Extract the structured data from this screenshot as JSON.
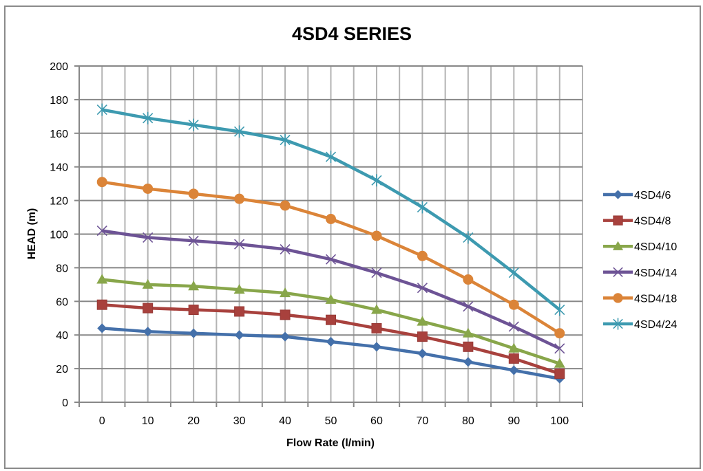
{
  "chart_data": {
    "type": "line",
    "title": "4SD4 SERIES",
    "xlabel": "Flow Rate (l/min)",
    "ylabel": "HEAD (m)",
    "categories": [
      "0",
      "10",
      "20",
      "30",
      "40",
      "50",
      "60",
      "70",
      "80",
      "90",
      "100"
    ],
    "ylim": [
      0,
      200
    ],
    "yticks": [
      "0",
      "20",
      "40",
      "60",
      "80",
      "100",
      "120",
      "140",
      "160",
      "180",
      "200"
    ],
    "grid": true,
    "legend_position": "right",
    "series": [
      {
        "name": "4SD4/6",
        "color": "#4470AA",
        "marker": "diamond",
        "values": [
          44,
          42,
          41,
          40,
          39,
          36,
          33,
          29,
          24,
          19,
          14
        ]
      },
      {
        "name": "4SD4/8",
        "color": "#A8413D",
        "marker": "square",
        "values": [
          58,
          56,
          55,
          54,
          52,
          49,
          44,
          39,
          33,
          26,
          17
        ]
      },
      {
        "name": "4SD4/10",
        "color": "#88A64A",
        "marker": "triangle",
        "values": [
          73,
          70,
          69,
          67,
          65,
          61,
          55,
          48,
          41,
          32,
          23
        ]
      },
      {
        "name": "4SD4/14",
        "color": "#6D5395",
        "marker": "x",
        "values": [
          102,
          98,
          96,
          94,
          91,
          85,
          77,
          68,
          57,
          45,
          32
        ]
      },
      {
        "name": "4SD4/18",
        "color": "#DB8438",
        "marker": "circle",
        "values": [
          131,
          127,
          124,
          121,
          117,
          109,
          99,
          87,
          73,
          58,
          41
        ]
      },
      {
        "name": "4SD4/24",
        "color": "#3D9AB0",
        "marker": "star",
        "values": [
          174,
          169,
          165,
          161,
          156,
          146,
          132,
          116,
          98,
          77,
          55
        ]
      }
    ]
  }
}
